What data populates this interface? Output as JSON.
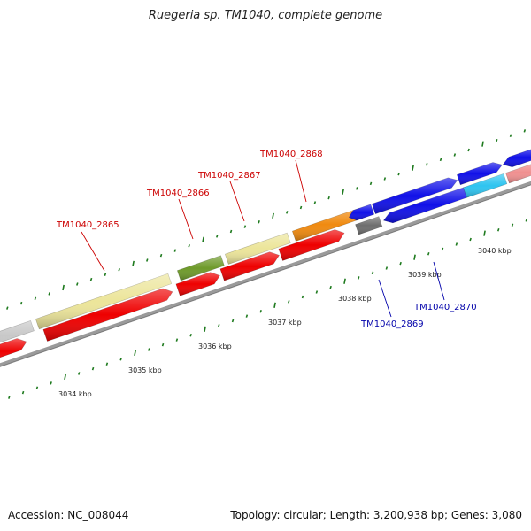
{
  "title": "Ruegeria sp. TM1040, complete genome",
  "accession_text": "Accession: NC_008044",
  "summary_text": "Topology: circular; Length: 3,200,938 bp; Genes: 3,080",
  "colors": {
    "backbone": "#7d7d7d",
    "tick": "#1e7a1e",
    "forward_label": "#cc0000",
    "reverse_label": "#0000aa"
  },
  "ticks": [
    {
      "label": "3034 kbp"
    },
    {
      "label": "3035 kbp"
    },
    {
      "label": "3036 kbp"
    },
    {
      "label": "3037 kbp"
    },
    {
      "label": "3038 kbp"
    },
    {
      "label": "3039 kbp"
    },
    {
      "label": "3040 kbp"
    }
  ],
  "gene_labels": [
    {
      "text": "TM1040_2865",
      "strand": "forward"
    },
    {
      "text": "TM1040_2866",
      "strand": "forward"
    },
    {
      "text": "TM1040_2867",
      "strand": "forward"
    },
    {
      "text": "TM1040_2868",
      "strand": "forward"
    },
    {
      "text": "TM1040_2869",
      "strand": "reverse"
    },
    {
      "text": "TM1040_2870",
      "strand": "reverse"
    }
  ]
}
